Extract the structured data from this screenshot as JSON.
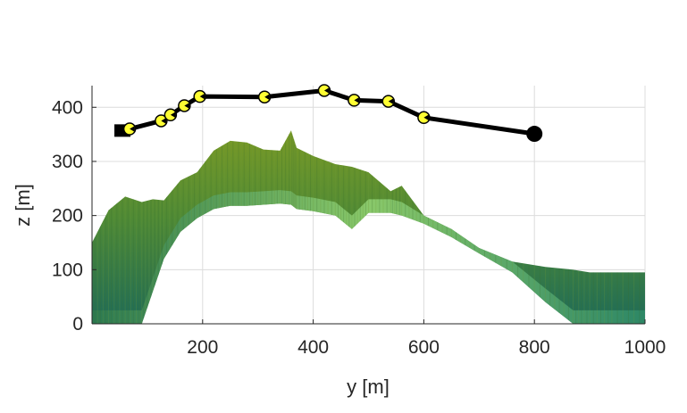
{
  "chart_data": {
    "type": "line",
    "title": "",
    "xlabel": "y [m]",
    "ylabel": "z [m]",
    "xlim": [
      0,
      1000
    ],
    "ylim": [
      0,
      440
    ],
    "xticks": [
      200,
      400,
      600,
      800,
      1000
    ],
    "yticks": [
      0,
      100,
      200,
      300,
      400
    ],
    "xtick_labels": [
      "200",
      "400",
      "600",
      "800",
      "1000"
    ],
    "ytick_labels": [
      "0",
      "100",
      "200",
      "300",
      "400"
    ],
    "grid": true,
    "legend": "none",
    "series": [
      {
        "path": {
          "x": [
            55,
            68,
            125,
            142,
            167,
            195,
            312,
            420,
            474,
            536,
            600,
            800
          ],
          "y": [
            357,
            360,
            375,
            386,
            403,
            420,
            419,
            431,
            413,
            411,
            381,
            351
          ],
          "color": "#000000"
        },
        "waypoints": {
          "x": [
            68,
            125,
            142,
            167,
            195,
            312,
            420,
            474,
            536,
            600
          ],
          "y": [
            360,
            375,
            386,
            403,
            420,
            419,
            431,
            413,
            411,
            381
          ],
          "color": "#ffff33"
        },
        "start": {
          "x": 55,
          "y": 357,
          "marker": "square"
        },
        "end": {
          "x": 800,
          "y": 351,
          "marker": "circle"
        }
      }
    ],
    "terrain": {
      "x": [
        0,
        30,
        60,
        90,
        110,
        130,
        160,
        190,
        220,
        250,
        280,
        310,
        340,
        360,
        370,
        400,
        440,
        470,
        500,
        540,
        560,
        600,
        650,
        700,
        760,
        820,
        870,
        900,
        940,
        1000
      ],
      "top": [
        150,
        210,
        235,
        225,
        230,
        228,
        265,
        280,
        320,
        338,
        335,
        322,
        320,
        357,
        325,
        310,
        295,
        290,
        280,
        245,
        255,
        200,
        175,
        140,
        115,
        105,
        100,
        95,
        95,
        95
      ],
      "bottom": [
        0,
        0,
        0,
        0,
        60,
        120,
        170,
        195,
        212,
        218,
        218,
        220,
        222,
        220,
        212,
        208,
        200,
        175,
        205,
        205,
        200,
        185,
        160,
        130,
        95,
        40,
        0,
        0,
        0,
        0
      ],
      "colors": [
        "#6b8f1e",
        "#3e7a3a",
        "#8ecb6a",
        "#1f6e57"
      ]
    }
  }
}
